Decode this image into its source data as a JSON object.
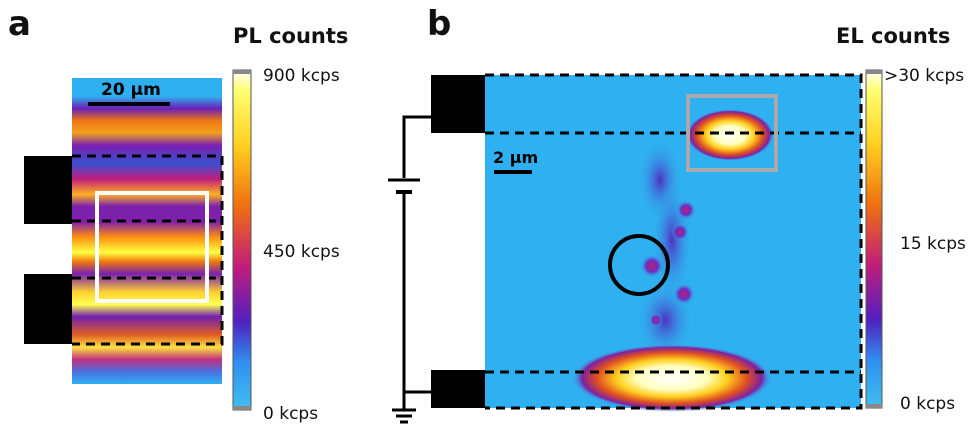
{
  "panel_a": {
    "label": "a",
    "colorbar_title": "PL counts",
    "colorbar_ticks": [
      "900 kcps",
      "450 kcps",
      "0 kcps"
    ],
    "scale_bar": "20 µm"
  },
  "panel_b": {
    "label": "b",
    "colorbar_title": "EL counts",
    "colorbar_ticks": [
      ">30 kcps",
      "15 kcps",
      "0 kcps"
    ],
    "scale_bar": "2 µm"
  },
  "colors": {
    "background_map": "#2fb0f0",
    "hot": "#ffff40",
    "warm": "#f07810",
    "mid": "#c01c7c",
    "low": "#6a20b8",
    "contact": "#000000",
    "roi_box_a": "#ffffff",
    "roi_box_b": "#aaaaaa"
  }
}
